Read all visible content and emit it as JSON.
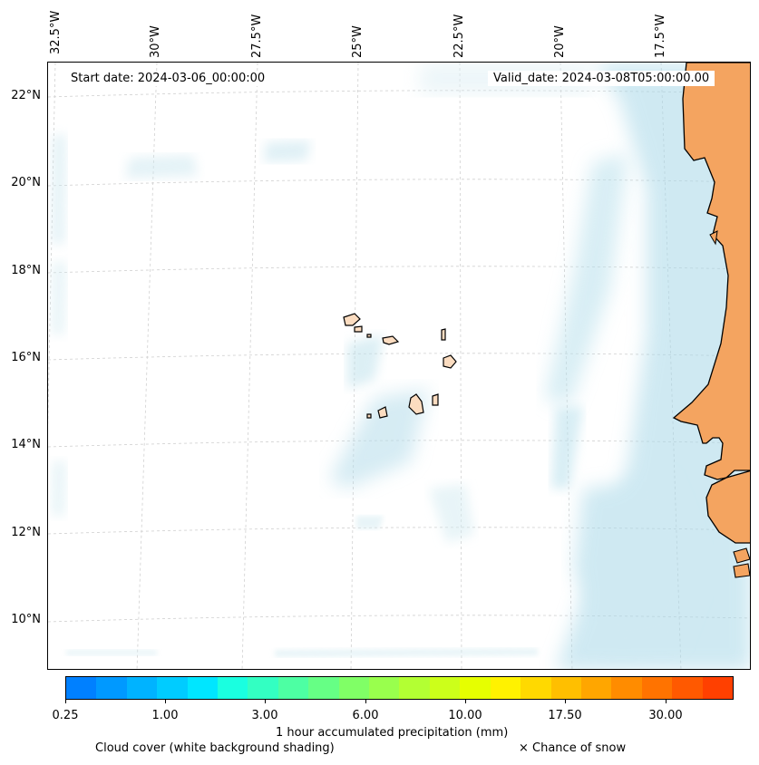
{
  "map": {
    "start_date": "Start date: 2024-03-06_00:00:00",
    "valid_date": "Valid_date: 2024-03-08T05:00:00.00",
    "lon_labels": [
      "32.5°W",
      "30°W",
      "27.5°W",
      "25°W",
      "22.5°W",
      "20°W",
      "17.5°W"
    ],
    "lat_labels": [
      "22°N",
      "20°N",
      "18°N",
      "16°N",
      "14°N",
      "12°N",
      "10°N"
    ],
    "colors": {
      "land_main": "#f4a460",
      "land_islands": "#fbdcc0",
      "cloud": "#a8d8e8"
    }
  },
  "colorbar": {
    "label": "1 hour accumulated precipitation (mm)",
    "ticks": [
      "0.25",
      "1.00",
      "3.00",
      "6.00",
      "10.00",
      "17.50",
      "30.00"
    ],
    "colors": [
      "#0080ff",
      "#0099ff",
      "#00b3ff",
      "#00ccff",
      "#00e6ff",
      "#1affe0",
      "#33ffc2",
      "#4dffa3",
      "#66ff85",
      "#80ff66",
      "#99ff4d",
      "#b3ff33",
      "#ccff1a",
      "#e6ff00",
      "#fff200",
      "#ffd900",
      "#ffbf00",
      "#ffa600",
      "#ff8c00",
      "#ff7300",
      "#ff5900",
      "#ff4000"
    ]
  },
  "legend": {
    "cloud_cover": "Cloud cover (white background shading)",
    "snow": "× Chance of snow"
  }
}
